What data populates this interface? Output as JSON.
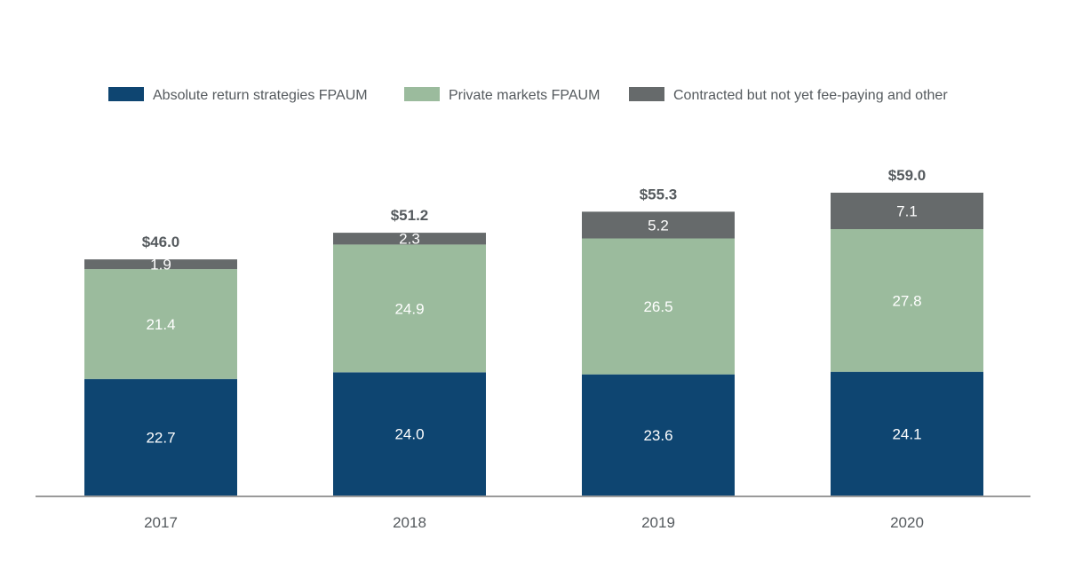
{
  "chart_data": {
    "type": "bar",
    "stacked": true,
    "categories": [
      "2017",
      "2018",
      "2019",
      "2020"
    ],
    "series": [
      {
        "name": "Absolute return strategies FPAUM",
        "color": "#0e4571",
        "values": [
          22.7,
          24.0,
          23.6,
          24.1
        ],
        "value_labels": [
          "22.7",
          "24.0",
          "23.6",
          "24.1"
        ]
      },
      {
        "name": "Private markets FPAUM",
        "color": "#9bbb9d",
        "values": [
          21.4,
          24.9,
          26.5,
          27.8
        ],
        "value_labels": [
          "21.4",
          "24.9",
          "26.5",
          "27.8"
        ]
      },
      {
        "name": "Contracted but not yet fee-paying and other",
        "color": "#666a6b",
        "values": [
          1.9,
          2.3,
          5.2,
          7.1
        ],
        "value_labels": [
          "1.9",
          "2.3",
          "5.2",
          "7.1"
        ]
      }
    ],
    "totals": [
      "$46.0",
      "$51.2",
      "$55.3",
      "$59.0"
    ],
    "legend_position": "top",
    "grid": false,
    "ylim": [
      0,
      65
    ],
    "axis_color": "#9a9a9a"
  }
}
